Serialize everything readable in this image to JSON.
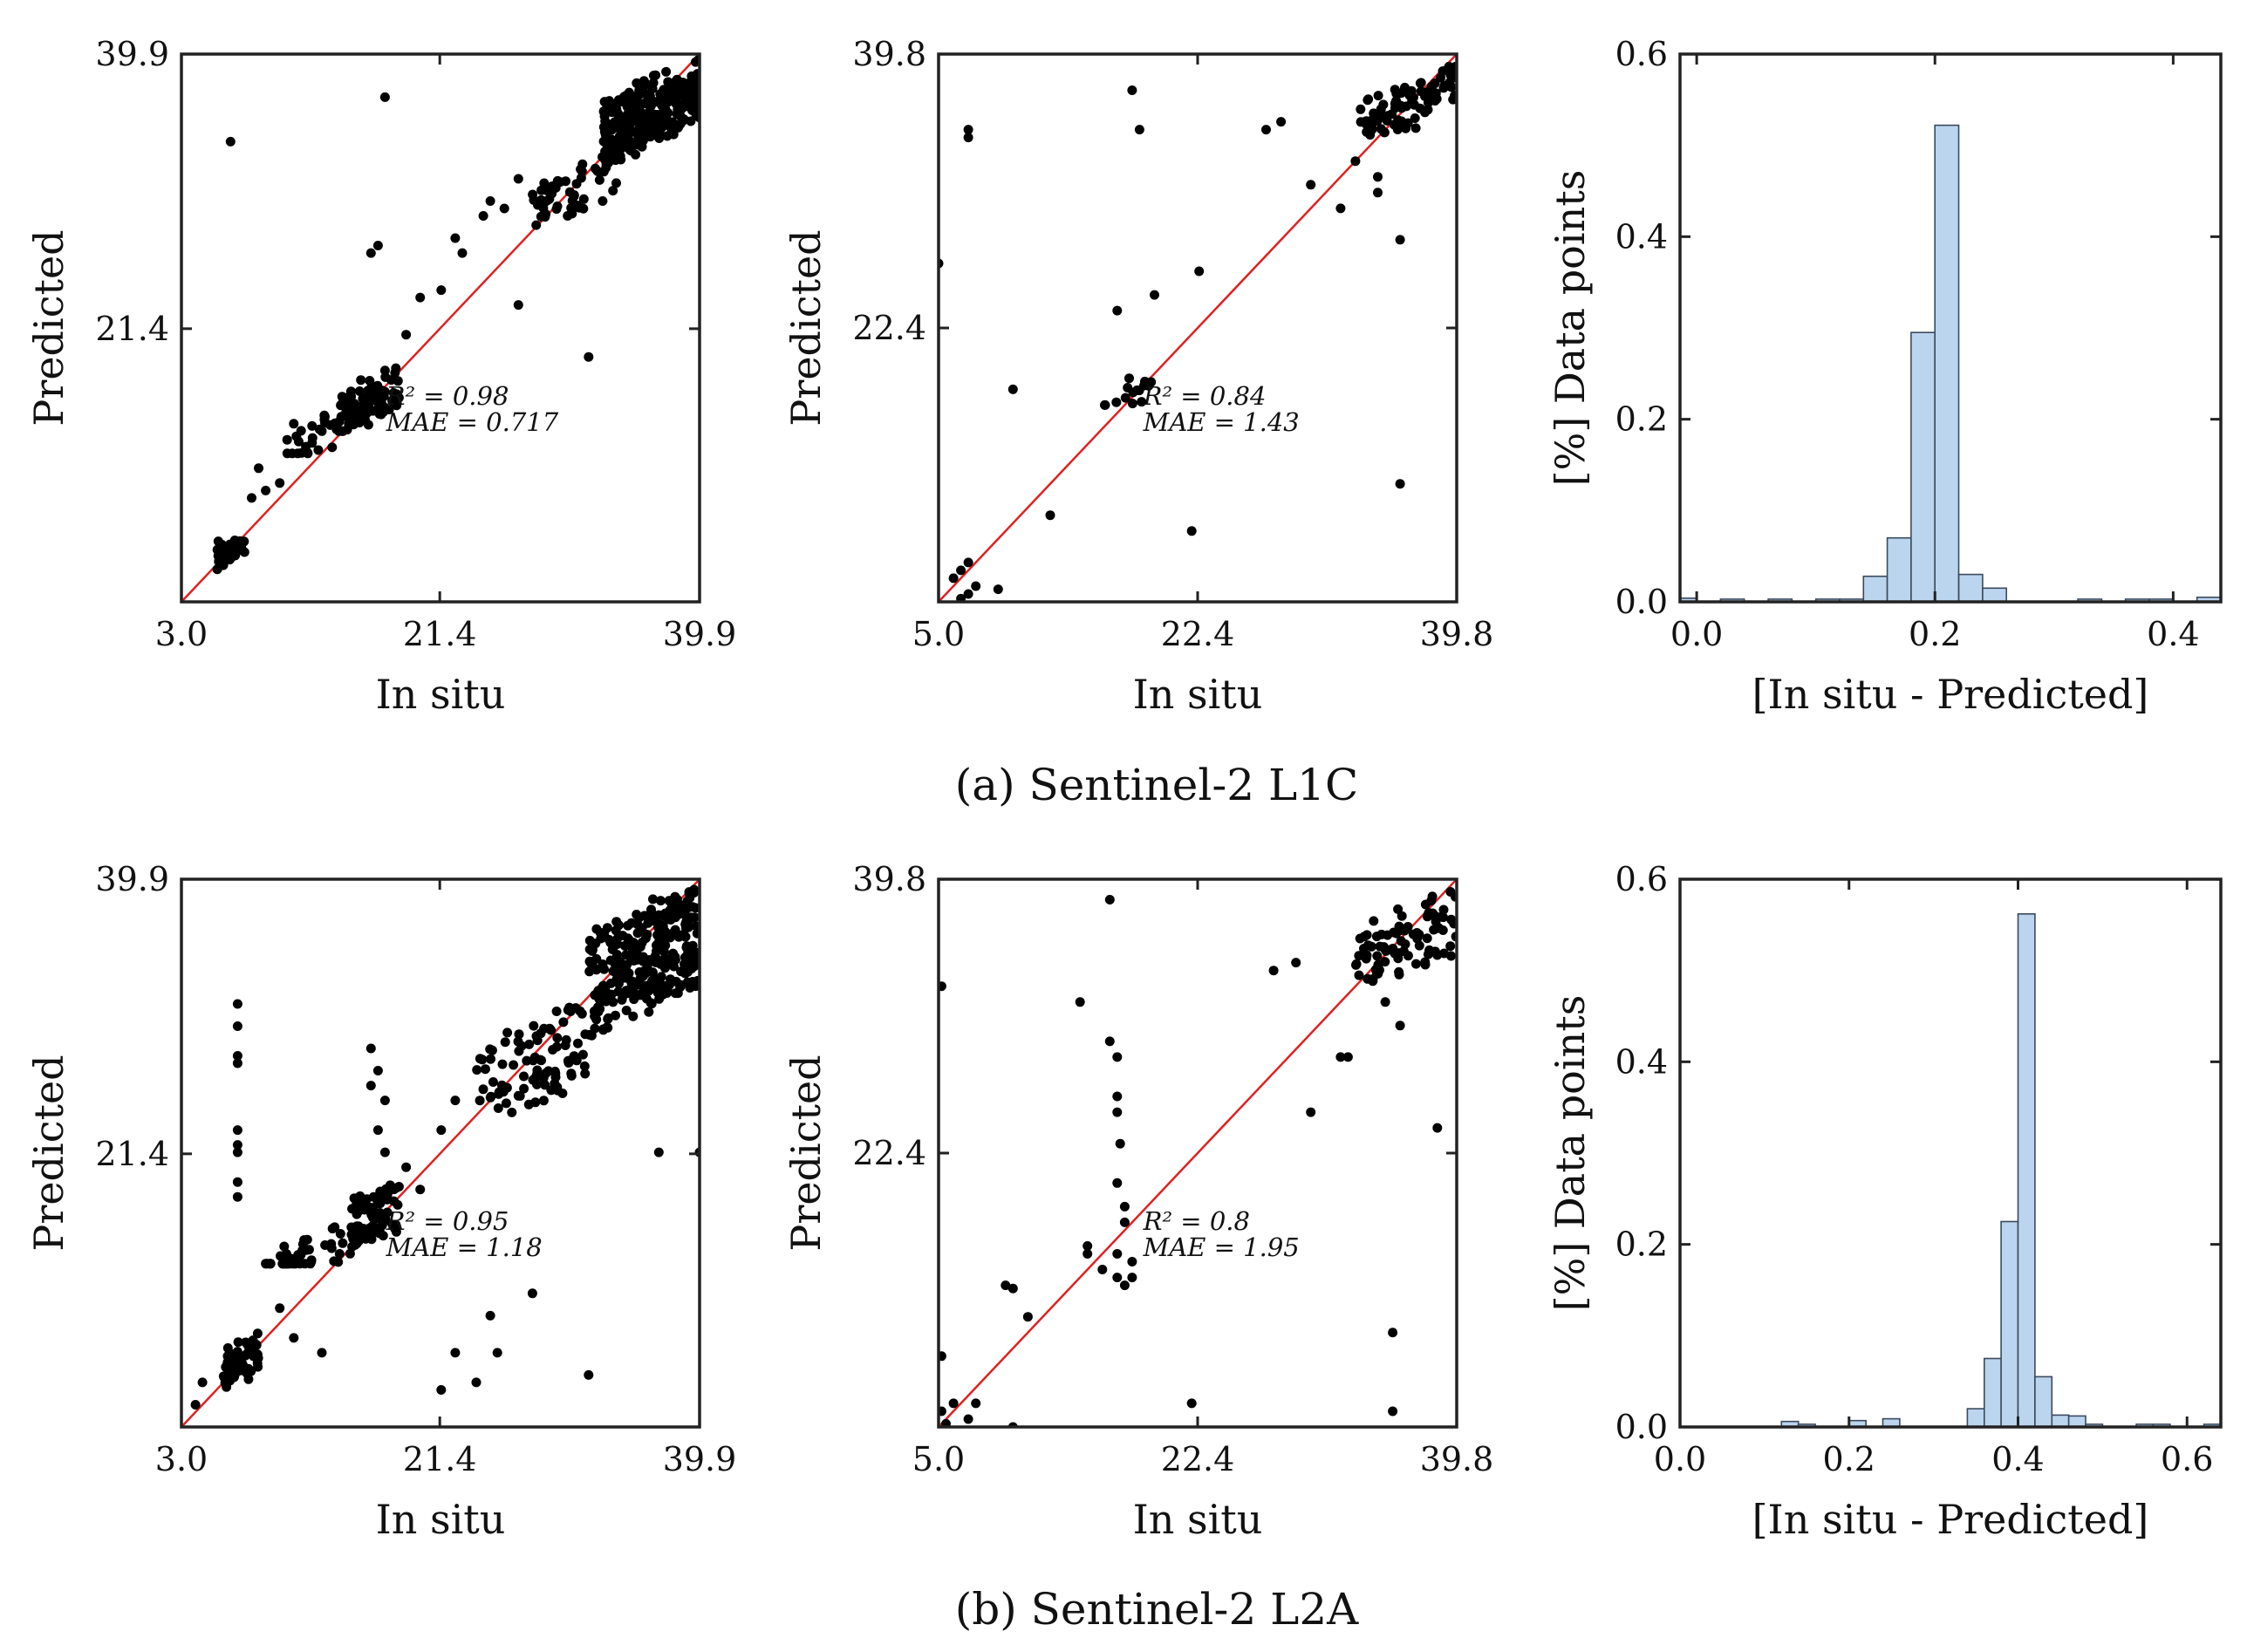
{
  "captions": [
    "(a) Sentinel-2 L1C",
    "(b) Sentinel-2 L2A"
  ],
  "chart_data": [
    {
      "id": "a1",
      "type": "scatter",
      "row": 0,
      "col": 0,
      "xlabel": "In situ",
      "ylabel": "Predicted",
      "xlim": [
        3.0,
        39.9
      ],
      "ylim": [
        3.0,
        39.9
      ],
      "xticks": [
        "3.0",
        "21.4",
        "39.9"
      ],
      "yticks": [
        "21.4",
        "39.9"
      ],
      "reference_line": "y = x (red)",
      "stats": [
        "R² = 0.98",
        "MAE = 0.717"
      ],
      "clusters": [
        {
          "x": [
            5.5,
            7.5
          ],
          "y": [
            5.0,
            7.5
          ],
          "n": 35
        },
        {
          "x": [
            10.5,
            17.5
          ],
          "y": [
            13,
            18
          ],
          "n": 50
        },
        {
          "x": [
            14.0,
            18.5
          ],
          "y": [
            14.5,
            19
          ],
          "n": 70
        },
        {
          "x": [
            28.0,
            34.0
          ],
          "y": [
            28,
            33
          ],
          "n": 50
        },
        {
          "x": [
            33.0,
            39.9
          ],
          "y": [
            32,
            39.5
          ],
          "n": 260
        }
      ],
      "points": [
        [
          6.5,
          34.0
        ],
        [
          17.5,
          37.0
        ],
        [
          17.0,
          27.0
        ],
        [
          32.0,
          19.5
        ],
        [
          27.0,
          23.0
        ],
        [
          12.0,
          13.0
        ],
        [
          8.0,
          10.0
        ],
        [
          20.0,
          23.5
        ],
        [
          23.0,
          26.5
        ],
        [
          24.5,
          29.0
        ],
        [
          27.0,
          31.5
        ],
        [
          30.5,
          29.0
        ],
        [
          11.0,
          15.0
        ],
        [
          9.0,
          10.5
        ],
        [
          13.0,
          14.5
        ],
        [
          21.5,
          24.0
        ],
        [
          25.0,
          30.0
        ],
        [
          29.0,
          30.0
        ],
        [
          26.0,
          29.5
        ],
        [
          8.5,
          12.0
        ],
        [
          10.0,
          11.0
        ],
        [
          22.5,
          27.5
        ],
        [
          33.0,
          30.0
        ],
        [
          16.5,
          26.5
        ],
        [
          19.0,
          21.0
        ]
      ]
    },
    {
      "id": "a2",
      "type": "scatter",
      "row": 0,
      "col": 1,
      "xlabel": "In situ",
      "ylabel": "Predicted",
      "xlim": [
        5.0,
        39.8
      ],
      "ylim": [
        5.0,
        39.8
      ],
      "xticks": [
        "5.0",
        "22.4",
        "39.8"
      ],
      "yticks": [
        "22.4",
        "39.8"
      ],
      "reference_line": "y = x (red)",
      "stats": [
        "R² = 0.84",
        "MAE = 1.43"
      ],
      "clusters": [
        {
          "x": [
            16.0,
            19.5
          ],
          "y": [
            17.5,
            19.0
          ],
          "n": 14
        },
        {
          "x": [
            33.0,
            39.8
          ],
          "y": [
            34.0,
            39.0
          ],
          "n": 80
        }
      ],
      "points": [
        [
          7.0,
          34.5
        ],
        [
          7.0,
          35.0
        ],
        [
          18.0,
          37.5
        ],
        [
          18.5,
          35.0
        ],
        [
          6.0,
          6.5
        ],
        [
          6.5,
          7.0
        ],
        [
          7.0,
          7.5
        ],
        [
          7.5,
          6.0
        ],
        [
          7.0,
          5.5
        ],
        [
          9.0,
          5.8
        ],
        [
          6.5,
          5.2
        ],
        [
          5.0,
          26.5
        ],
        [
          10.0,
          18.5
        ],
        [
          17.0,
          23.5
        ],
        [
          19.5,
          24.5
        ],
        [
          22.5,
          26.0
        ],
        [
          12.5,
          10.5
        ],
        [
          22.0,
          9.5
        ],
        [
          27.0,
          35.0
        ],
        [
          28.0,
          35.5
        ],
        [
          30.0,
          31.5
        ],
        [
          33.0,
          33.0
        ],
        [
          34.5,
          32.0
        ],
        [
          34.5,
          31.0
        ],
        [
          36.0,
          28.0
        ],
        [
          36.0,
          12.5
        ],
        [
          32.0,
          30.0
        ],
        [
          17.8,
          19.2
        ]
      ]
    },
    {
      "id": "a3",
      "type": "bar",
      "row": 0,
      "col": 2,
      "xlabel": "[In situ - Predicted]",
      "ylabel": "[%] Data points",
      "xlim": [
        -0.014,
        0.44
      ],
      "ylim": [
        0.0,
        0.6
      ],
      "xticks": [
        "0.0",
        "0.2",
        "0.4"
      ],
      "yticks": [
        "0.0",
        "0.2",
        "0.4",
        "0.6"
      ],
      "bin_width": 0.02,
      "bins": [
        {
          "x": -0.01,
          "value": 0.004
        },
        {
          "x": 0.03,
          "value": 0.003
        },
        {
          "x": 0.07,
          "value": 0.003
        },
        {
          "x": 0.11,
          "value": 0.003
        },
        {
          "x": 0.13,
          "value": 0.003
        },
        {
          "x": 0.15,
          "value": 0.028
        },
        {
          "x": 0.17,
          "value": 0.07
        },
        {
          "x": 0.19,
          "value": 0.295
        },
        {
          "x": 0.21,
          "value": 0.522
        },
        {
          "x": 0.23,
          "value": 0.03
        },
        {
          "x": 0.25,
          "value": 0.015
        },
        {
          "x": 0.33,
          "value": 0.003
        },
        {
          "x": 0.37,
          "value": 0.003
        },
        {
          "x": 0.39,
          "value": 0.003
        },
        {
          "x": 0.43,
          "value": 0.005
        }
      ]
    },
    {
      "id": "b1",
      "type": "scatter",
      "row": 1,
      "col": 0,
      "xlabel": "In situ",
      "ylabel": "Predicted",
      "xlim": [
        3.0,
        39.9
      ],
      "ylim": [
        3.0,
        39.9
      ],
      "xticks": [
        "3.0",
        "21.4",
        "39.9"
      ],
      "yticks": [
        "21.4",
        "39.9"
      ],
      "reference_line": "y = x (red)",
      "stats": [
        "R² = 0.95",
        "MAE = 1.18"
      ],
      "clusters": [
        {
          "x": [
            6.0,
            8.5
          ],
          "y": [
            5.0,
            9.5
          ],
          "n": 60
        },
        {
          "x": [
            9.0,
            14.5
          ],
          "y": [
            14.0,
            18.5
          ],
          "n": 50
        },
        {
          "x": [
            15.0,
            18.5
          ],
          "y": [
            14.5,
            20.5
          ],
          "n": 80
        },
        {
          "x": [
            24.0,
            32.0
          ],
          "y": [
            22.0,
            32.0
          ],
          "n": 90
        },
        {
          "x": [
            32.0,
            39.9
          ],
          "y": [
            27.0,
            39.5
          ],
          "n": 300
        }
      ],
      "points": [
        [
          7.0,
          31.5
        ],
        [
          7.0,
          30.0
        ],
        [
          7.0,
          28.0
        ],
        [
          7.0,
          27.5
        ],
        [
          7.0,
          23.0
        ],
        [
          7.0,
          22.0
        ],
        [
          7.0,
          21.5
        ],
        [
          7.0,
          19.5
        ],
        [
          7.0,
          18.5
        ],
        [
          16.5,
          28.5
        ],
        [
          17.0,
          27.0
        ],
        [
          16.5,
          26.0
        ],
        [
          17.5,
          25.0
        ],
        [
          17.0,
          23.0
        ],
        [
          17.5,
          21.5
        ],
        [
          21.5,
          5.5
        ],
        [
          24.0,
          6.0
        ],
        [
          25.0,
          10.5
        ],
        [
          22.5,
          8.0
        ],
        [
          25.5,
          8.0
        ],
        [
          28.0,
          12.0
        ],
        [
          32.0,
          6.5
        ],
        [
          37.0,
          21.5
        ],
        [
          39.9,
          21.5
        ],
        [
          20.0,
          19.0
        ],
        [
          21.5,
          23.0
        ],
        [
          22.5,
          25.0
        ],
        [
          13.0,
          8.0
        ],
        [
          11.0,
          9.0
        ],
        [
          10.0,
          11.0
        ],
        [
          4.5,
          6.0
        ],
        [
          4.0,
          4.5
        ],
        [
          19.0,
          20.5
        ]
      ]
    },
    {
      "id": "b2",
      "type": "scatter",
      "row": 1,
      "col": 1,
      "xlabel": "In situ",
      "ylabel": "Predicted",
      "xlim": [
        5.0,
        39.8
      ],
      "ylim": [
        5.0,
        39.8
      ],
      "xticks": [
        "5.0",
        "22.4",
        "39.8"
      ],
      "yticks": [
        "22.4",
        "39.8"
      ],
      "reference_line": "y = x (red)",
      "stats": [
        "R² = 0.8",
        "MAE = 1.95"
      ],
      "clusters": [
        {
          "x": [
            33.0,
            39.8
          ],
          "y": [
            32.0,
            39.0
          ],
          "n": 90
        }
      ],
      "points": [
        [
          5.2,
          33.0
        ],
        [
          5.2,
          9.5
        ],
        [
          5.2,
          6.0
        ],
        [
          5.5,
          5.2
        ],
        [
          6.0,
          6.5
        ],
        [
          7.0,
          5.5
        ],
        [
          7.5,
          6.5
        ],
        [
          10.0,
          5.0
        ],
        [
          9.5,
          14.0
        ],
        [
          10.0,
          13.8
        ],
        [
          11.0,
          12.0
        ],
        [
          14.5,
          32.0
        ],
        [
          16.5,
          38.5
        ],
        [
          16.5,
          29.5
        ],
        [
          17.0,
          28.5
        ],
        [
          17.0,
          26.0
        ],
        [
          17.0,
          25.0
        ],
        [
          17.2,
          23.0
        ],
        [
          17.0,
          20.5
        ],
        [
          17.5,
          19.0
        ],
        [
          17.5,
          18.0
        ],
        [
          17.0,
          16.0
        ],
        [
          15.0,
          16.5
        ],
        [
          15.0,
          16.0
        ],
        [
          16.0,
          15.0
        ],
        [
          18.0,
          15.5
        ],
        [
          18.0,
          14.5
        ],
        [
          17.0,
          14.5
        ],
        [
          17.5,
          14.0
        ],
        [
          22.0,
          6.5
        ],
        [
          27.5,
          34.0
        ],
        [
          29.0,
          34.5
        ],
        [
          30.0,
          25.0
        ],
        [
          32.0,
          28.5
        ],
        [
          32.5,
          28.5
        ],
        [
          35.5,
          11.0
        ],
        [
          35.5,
          6.0
        ],
        [
          36.0,
          30.5
        ],
        [
          38.5,
          24.0
        ],
        [
          35.0,
          32.0
        ]
      ]
    },
    {
      "id": "b3",
      "type": "bar",
      "row": 1,
      "col": 2,
      "xlabel": "[In situ - Predicted]",
      "ylabel": "[%] Data points",
      "xlim": [
        0.0,
        0.64
      ],
      "ylim": [
        0.0,
        0.6
      ],
      "xticks": [
        "0.0",
        "0.2",
        "0.4",
        "0.6"
      ],
      "yticks": [
        "0.0",
        "0.2",
        "0.4",
        "0.6"
      ],
      "bin_width": 0.02,
      "bins": [
        {
          "x": 0.13,
          "value": 0.006
        },
        {
          "x": 0.15,
          "value": 0.003
        },
        {
          "x": 0.21,
          "value": 0.007
        },
        {
          "x": 0.25,
          "value": 0.009
        },
        {
          "x": 0.35,
          "value": 0.02
        },
        {
          "x": 0.37,
          "value": 0.075
        },
        {
          "x": 0.39,
          "value": 0.225
        },
        {
          "x": 0.41,
          "value": 0.562
        },
        {
          "x": 0.43,
          "value": 0.055
        },
        {
          "x": 0.45,
          "value": 0.013
        },
        {
          "x": 0.47,
          "value": 0.012
        },
        {
          "x": 0.49,
          "value": 0.003
        },
        {
          "x": 0.55,
          "value": 0.003
        },
        {
          "x": 0.57,
          "value": 0.003
        },
        {
          "x": 0.63,
          "value": 0.003
        }
      ]
    }
  ]
}
